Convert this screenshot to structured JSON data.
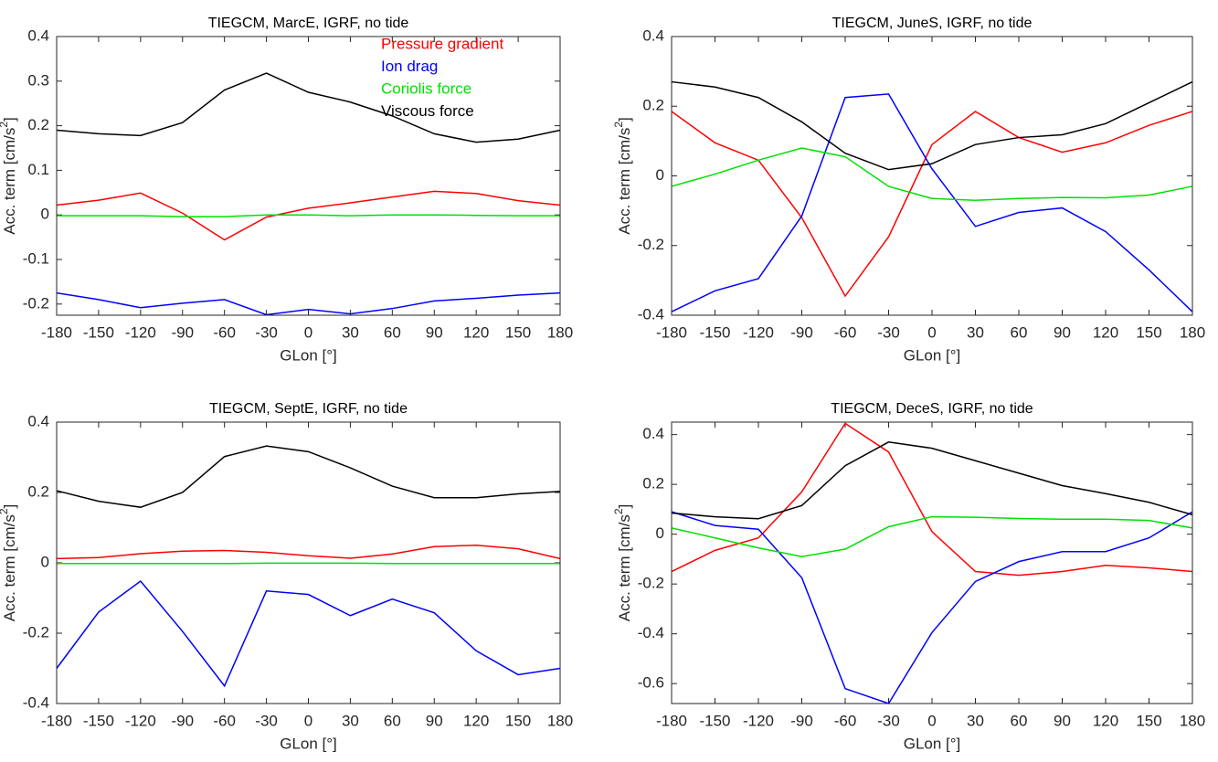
{
  "chart_data": [
    {
      "type": "line",
      "title": "TIEGCM, MarcE, IGRF, no tide",
      "xlabel": "GLon [°]",
      "ylabel": "Acc. term [cm/s",
      "ylabel_sup": "2",
      "ylabel_end": "]",
      "x": [
        -180,
        -150,
        -120,
        -90,
        -60,
        -30,
        0,
        30,
        60,
        90,
        120,
        150,
        180
      ],
      "xlim": [
        -180,
        180
      ],
      "xticks": [
        -180,
        -150,
        -120,
        -90,
        -60,
        -30,
        0,
        30,
        60,
        90,
        120,
        150,
        180
      ],
      "ylim": [
        -0.225,
        0.4
      ],
      "yticks": [
        -0.2,
        -0.1,
        0,
        0.1,
        0.2,
        0.3,
        0.4
      ],
      "legend": "northeast",
      "series": [
        {
          "name": "Pressure gradient",
          "color": "#ff0000",
          "values": [
            0.022,
            0.033,
            0.049,
            0.004,
            -0.056,
            -0.005,
            0.015,
            0.027,
            0.04,
            0.053,
            0.048,
            0.032,
            0.022
          ]
        },
        {
          "name": "Ion drag",
          "color": "#0000ff",
          "values": [
            -0.175,
            -0.19,
            -0.208,
            -0.198,
            -0.19,
            -0.224,
            -0.212,
            -0.222,
            -0.21,
            -0.193,
            -0.187,
            -0.18,
            -0.175
          ]
        },
        {
          "name": "Coriolis force",
          "color": "#00e000",
          "values": [
            -0.002,
            -0.002,
            -0.002,
            -0.004,
            -0.004,
            0.0,
            0.0,
            -0.002,
            0.0,
            0.0,
            -0.001,
            -0.002,
            -0.002
          ]
        },
        {
          "name": "Viscous force",
          "color": "#000000",
          "values": [
            0.19,
            0.182,
            0.178,
            0.207,
            0.28,
            0.318,
            0.275,
            0.253,
            0.222,
            0.182,
            0.163,
            0.17,
            0.19
          ]
        }
      ]
    },
    {
      "type": "line",
      "title": "TIEGCM, JuneS, IGRF, no tide",
      "xlabel": "GLon [°]",
      "ylabel": "Acc. term [cm/s",
      "ylabel_sup": "2",
      "ylabel_end": "]",
      "x": [
        -180,
        -150,
        -120,
        -90,
        -60,
        -30,
        0,
        30,
        60,
        90,
        120,
        150,
        180
      ],
      "xlim": [
        -180,
        180
      ],
      "xticks": [
        -180,
        -150,
        -120,
        -90,
        -60,
        -30,
        0,
        30,
        60,
        90,
        120,
        150,
        180
      ],
      "ylim": [
        -0.4,
        0.4
      ],
      "yticks": [
        -0.4,
        -0.2,
        0,
        0.2,
        0.4
      ],
      "series": [
        {
          "color": "#ff0000",
          "values": [
            0.185,
            0.095,
            0.045,
            -0.12,
            -0.345,
            -0.175,
            0.09,
            0.185,
            0.11,
            0.068,
            0.095,
            0.145,
            0.185
          ]
        },
        {
          "color": "#0000ff",
          "values": [
            -0.39,
            -0.33,
            -0.295,
            -0.115,
            0.225,
            0.235,
            0.02,
            -0.145,
            -0.105,
            -0.092,
            -0.16,
            -0.27,
            -0.39
          ]
        },
        {
          "color": "#00e000",
          "values": [
            -0.03,
            0.005,
            0.045,
            0.08,
            0.055,
            -0.03,
            -0.065,
            -0.07,
            -0.065,
            -0.062,
            -0.063,
            -0.055,
            -0.03
          ]
        },
        {
          "color": "#000000",
          "values": [
            0.27,
            0.255,
            0.225,
            0.155,
            0.065,
            0.018,
            0.035,
            0.09,
            0.11,
            0.118,
            0.15,
            0.21,
            0.27
          ]
        }
      ]
    },
    {
      "type": "line",
      "title": "TIEGCM, SeptE, IGRF, no tide",
      "xlabel": "GLon [°]",
      "ylabel": "Acc. term [cm/s",
      "ylabel_sup": "2",
      "ylabel_end": "]",
      "x": [
        -180,
        -150,
        -120,
        -90,
        -60,
        -30,
        0,
        30,
        60,
        90,
        120,
        150,
        180
      ],
      "xlim": [
        -180,
        180
      ],
      "xticks": [
        -180,
        -150,
        -120,
        -90,
        -60,
        -30,
        0,
        30,
        60,
        90,
        120,
        150,
        180
      ],
      "ylim": [
        -0.4,
        0.4
      ],
      "yticks": [
        -0.4,
        -0.2,
        0,
        0.2,
        0.4
      ],
      "series": [
        {
          "color": "#ff0000",
          "values": [
            0.012,
            0.015,
            0.026,
            0.033,
            0.035,
            0.03,
            0.02,
            0.013,
            0.025,
            0.046,
            0.05,
            0.04,
            0.012
          ]
        },
        {
          "color": "#0000ff",
          "values": [
            -0.3,
            -0.14,
            -0.052,
            -0.195,
            -0.35,
            -0.08,
            -0.09,
            -0.15,
            -0.103,
            -0.142,
            -0.25,
            -0.318,
            -0.3
          ]
        },
        {
          "color": "#00e000",
          "values": [
            -0.002,
            -0.002,
            -0.002,
            -0.002,
            -0.002,
            -0.001,
            -0.001,
            -0.001,
            -0.002,
            -0.002,
            -0.002,
            -0.002,
            -0.002
          ]
        },
        {
          "color": "#000000",
          "values": [
            0.205,
            0.175,
            0.158,
            0.2,
            0.302,
            0.332,
            0.316,
            0.27,
            0.218,
            0.185,
            0.185,
            0.196,
            0.203
          ]
        }
      ]
    },
    {
      "type": "line",
      "title": "TIEGCM, DeceS, IGRF, no tide",
      "xlabel": "GLon [°]",
      "ylabel": "Acc. term [cm/s",
      "ylabel_sup": "2",
      "ylabel_end": "]",
      "x": [
        -180,
        -150,
        -120,
        -90,
        -60,
        -30,
        0,
        30,
        60,
        90,
        120,
        150,
        180
      ],
      "xlim": [
        -180,
        180
      ],
      "xticks": [
        -180,
        -150,
        -120,
        -90,
        -60,
        -30,
        0,
        30,
        60,
        90,
        120,
        150,
        180
      ],
      "ylim": [
        -0.68,
        0.45
      ],
      "yticks": [
        -0.6,
        -0.4,
        -0.2,
        0,
        0.2,
        0.4
      ],
      "series": [
        {
          "color": "#ff0000",
          "values": [
            -0.15,
            -0.065,
            -0.015,
            0.17,
            0.445,
            0.33,
            0.01,
            -0.15,
            -0.165,
            -0.15,
            -0.125,
            -0.135,
            -0.15
          ]
        },
        {
          "color": "#0000ff",
          "values": [
            0.09,
            0.035,
            0.02,
            -0.175,
            -0.62,
            -0.68,
            -0.395,
            -0.19,
            -0.11,
            -0.07,
            -0.07,
            -0.015,
            0.09
          ]
        },
        {
          "color": "#00e000",
          "values": [
            0.025,
            -0.015,
            -0.055,
            -0.09,
            -0.06,
            0.03,
            0.07,
            0.068,
            0.063,
            0.06,
            0.06,
            0.055,
            0.025
          ]
        },
        {
          "color": "#000000",
          "values": [
            0.085,
            0.07,
            0.062,
            0.115,
            0.275,
            0.37,
            0.345,
            0.295,
            0.245,
            0.195,
            0.163,
            0.128,
            0.078
          ]
        }
      ]
    }
  ]
}
